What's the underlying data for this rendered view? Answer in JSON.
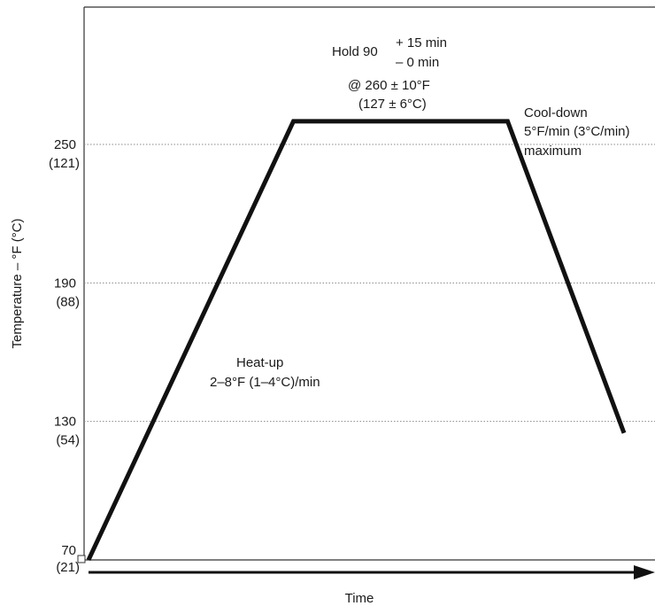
{
  "chart_data": {
    "type": "line",
    "title": "",
    "xlabel": "Time",
    "ylabel": "Temperature – °F (°C)",
    "grid": "horizontal-dotted",
    "ylim": [
      70,
      320
    ],
    "xlim": [
      0,
      240
    ],
    "y_ticks": [
      {
        "value": 70,
        "label": "70",
        "sublabel": "(21)"
      },
      {
        "value": 130,
        "label": "130",
        "sublabel": "(54)"
      },
      {
        "value": 190,
        "label": "190",
        "sublabel": "(88)"
      },
      {
        "value": 250,
        "label": "250",
        "sublabel": "(121)"
      }
    ],
    "series": [
      {
        "x": [
          0,
          88,
          180,
          230
        ],
        "y": [
          70,
          260,
          260,
          125
        ]
      }
    ],
    "annotations": {
      "hold_main": "Hold 90",
      "hold_plus": "+ 15 min",
      "hold_minus": "– 0 min",
      "hold_temp_f": "@ 260 ± 10°F",
      "hold_temp_c": "(127 ± 6°C)",
      "cooldown_line1": "Cool-down",
      "cooldown_line2": "5°F/min (3°C/min)",
      "cooldown_line3": "maximum",
      "heatup_line1": "Heat-up",
      "heatup_line2": "2–8°F (1–4°C)/min"
    }
  }
}
